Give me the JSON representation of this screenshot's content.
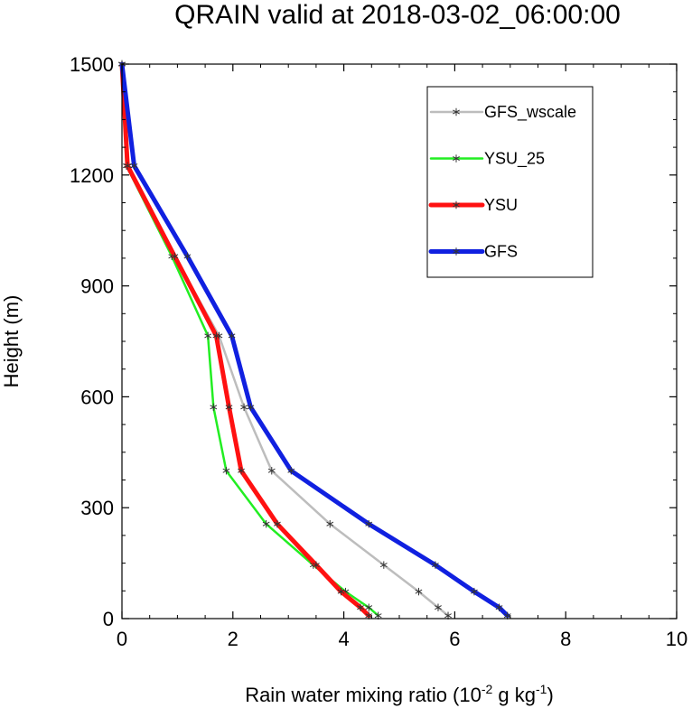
{
  "chart_data": {
    "type": "line",
    "title": "QRAIN valid at 2018-03-02_06:00:00",
    "xlabel": {
      "prefix": "Rain water mixing ratio (10",
      "exp1": "-2",
      "mid": " g kg",
      "exp2": "-1",
      "suffix": ")"
    },
    "ylabel": "Height (m)",
    "xlim": [
      0,
      10
    ],
    "ylim": [
      0,
      1500
    ],
    "x_ticks": [
      0,
      2,
      4,
      6,
      8,
      10
    ],
    "y_ticks": [
      0,
      300,
      600,
      900,
      1200,
      1500
    ],
    "legend_position": "top-right",
    "marker": "asterisk",
    "series": [
      {
        "name": "GFS_wscale",
        "color": "#bdbdbd",
        "points": [
          [
            5.88,
            8
          ],
          [
            5.7,
            30
          ],
          [
            5.35,
            73
          ],
          [
            4.72,
            145
          ],
          [
            3.75,
            256
          ],
          [
            2.7,
            400
          ],
          [
            2.2,
            572
          ],
          [
            1.75,
            765
          ],
          [
            0.95,
            980
          ],
          [
            0.12,
            1225
          ],
          [
            0.0,
            1500
          ]
        ]
      },
      {
        "name": "YSU_25",
        "color": "#22ee22",
        "points": [
          [
            4.62,
            8
          ],
          [
            4.45,
            30
          ],
          [
            4.03,
            73
          ],
          [
            3.45,
            145
          ],
          [
            2.6,
            256
          ],
          [
            1.88,
            400
          ],
          [
            1.65,
            572
          ],
          [
            1.55,
            765
          ],
          [
            0.9,
            980
          ],
          [
            0.08,
            1225
          ],
          [
            0.0,
            1500
          ]
        ]
      },
      {
        "name": "YSU",
        "color": "#ff1111",
        "points": [
          [
            4.45,
            8
          ],
          [
            4.3,
            30
          ],
          [
            3.95,
            73
          ],
          [
            3.5,
            145
          ],
          [
            2.8,
            256
          ],
          [
            2.15,
            400
          ],
          [
            1.93,
            572
          ],
          [
            1.7,
            765
          ],
          [
            0.95,
            980
          ],
          [
            0.1,
            1225
          ],
          [
            0.0,
            1500
          ]
        ]
      },
      {
        "name": "GFS",
        "color": "#1020e0",
        "points": [
          [
            6.95,
            8
          ],
          [
            6.8,
            30
          ],
          [
            6.35,
            73
          ],
          [
            5.65,
            145
          ],
          [
            4.45,
            256
          ],
          [
            3.05,
            400
          ],
          [
            2.32,
            572
          ],
          [
            1.98,
            765
          ],
          [
            1.18,
            980
          ],
          [
            0.22,
            1225
          ],
          [
            0.0,
            1500
          ]
        ]
      }
    ]
  }
}
